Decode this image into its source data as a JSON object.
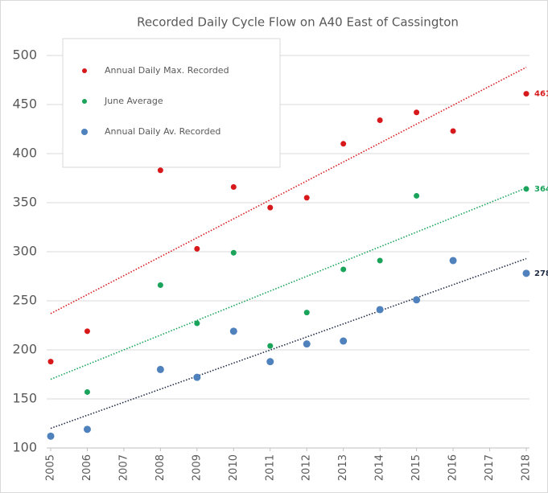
{
  "chart_data": {
    "type": "scatter",
    "title": "Recorded Daily Cycle Flow on A40 East of Cassington",
    "xlim": [
      2005,
      2018
    ],
    "xticks": [
      2005,
      2006,
      2007,
      2008,
      2009,
      2010,
      2011,
      2012,
      2013,
      2014,
      2015,
      2016,
      2017,
      2018
    ],
    "ylim": [
      100,
      500
    ],
    "yticks": [
      100,
      150,
      200,
      250,
      300,
      350,
      400,
      450,
      500
    ],
    "grid": true,
    "legend": "upper left",
    "series": [
      {
        "name": "Annual Daily Max. Recorded",
        "color": "#d7191c",
        "trend_color": "#d7191c",
        "x": [
          2005,
          2006,
          2008,
          2009,
          2010,
          2011,
          2012,
          2013,
          2014,
          2015,
          2016,
          2018
        ],
        "values": [
          188,
          219,
          383,
          303,
          366,
          345,
          355,
          410,
          434,
          442,
          423,
          461
        ],
        "trend": [
          237,
          488
        ]
      },
      {
        "name": "June Average",
        "color": "#1aa35a",
        "trend_color": "#1aa35a",
        "x": [
          2006,
          2008,
          2009,
          2010,
          2011,
          2012,
          2013,
          2014,
          2015,
          2018
        ],
        "values": [
          157,
          266,
          227,
          299,
          204,
          238,
          282,
          291,
          357,
          364
        ],
        "trend": [
          170,
          365
        ]
      },
      {
        "name": "Annual Daily Av. Recorded",
        "color": "#4f81bd",
        "trend_color": "#1f2a44",
        "x": [
          2005,
          2006,
          2008,
          2009,
          2010,
          2011,
          2012,
          2013,
          2014,
          2015,
          2016,
          2018
        ],
        "values": [
          112,
          119,
          180,
          172,
          219,
          188,
          206,
          209,
          241,
          251,
          291,
          278
        ],
        "trend": [
          120,
          293
        ]
      }
    ]
  }
}
